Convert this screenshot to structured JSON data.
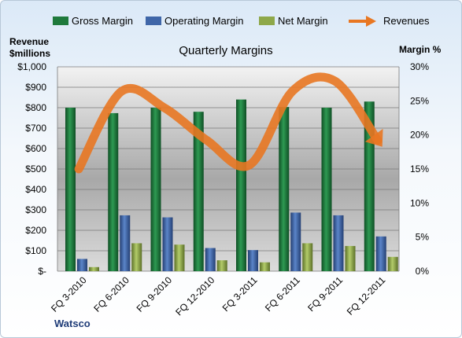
{
  "chart_data": {
    "type": "bar",
    "title": "Quarterly Margins",
    "categories": [
      "FQ 3-2010",
      "FQ 6-2010",
      "FQ 9-2010",
      "FQ 12-2010",
      "FQ 3-2011",
      "FQ 6-2011",
      "FQ 9-2011",
      "FQ 12-2011"
    ],
    "series": [
      {
        "name": "Gross Margin",
        "axis": "right",
        "kind": "bar",
        "color": "#1f7a3c",
        "values": [
          24.0,
          23.2,
          24.0,
          23.4,
          25.2,
          24.1,
          24.0,
          24.9
        ]
      },
      {
        "name": "Operating Margin",
        "axis": "right",
        "kind": "bar",
        "color": "#3f66a8",
        "values": [
          1.8,
          8.2,
          7.9,
          3.4,
          3.1,
          8.6,
          8.2,
          5.1
        ]
      },
      {
        "name": "Net Margin",
        "axis": "right",
        "kind": "bar",
        "color": "#8ea84a",
        "values": [
          0.6,
          4.1,
          3.9,
          1.6,
          1.3,
          4.1,
          3.7,
          2.1
        ]
      },
      {
        "name": "Revenues",
        "axis": "left",
        "kind": "line",
        "color": "#e87722",
        "values": [
          500,
          880,
          800,
          640,
          520,
          880,
          930,
          640
        ]
      }
    ],
    "left_axis": {
      "label_line1": "Revenue",
      "label_line2": "$millions",
      "ylim": [
        0,
        1000
      ],
      "ticks": [
        "$-",
        "$100",
        "$200",
        "$300",
        "$400",
        "$500",
        "$600",
        "$700",
        "$800",
        "$900",
        "$1,000"
      ]
    },
    "right_axis": {
      "label": "Margin %",
      "ylim": [
        0,
        30
      ],
      "ticks": [
        "0%",
        "5%",
        "10%",
        "15%",
        "20%",
        "25%",
        "30%"
      ]
    },
    "grid": true,
    "legend_position": "top",
    "source_label": "Watsco"
  },
  "legend": [
    {
      "label": "Gross Margin",
      "color": "#1f7a3c",
      "kind": "bar"
    },
    {
      "label": "Operating Margin",
      "color": "#3f66a8",
      "kind": "bar"
    },
    {
      "label": "Net Margin",
      "color": "#8ea84a",
      "kind": "bar"
    },
    {
      "label": "Revenues",
      "color": "#e87722",
      "kind": "arrow"
    }
  ]
}
